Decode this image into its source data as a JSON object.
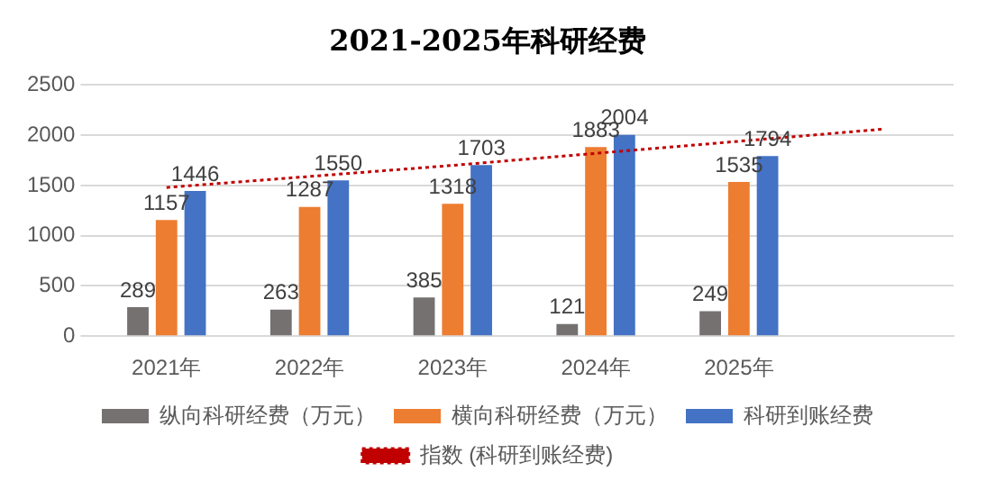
{
  "chart_data": {
    "type": "bar",
    "title": "2021-2025年科研经费",
    "categories": [
      "2021年",
      "2022年",
      "2023年",
      "2024年",
      "2025年",
      null
    ],
    "series": [
      {
        "name": "纵向科研经费（万元）",
        "color": "#767171",
        "values": [
          289,
          263,
          385,
          121,
          249,
          null
        ],
        "value_labels": [
          "289",
          "263",
          "385",
          "121",
          "249",
          null
        ]
      },
      {
        "name": "横向科研经费（万元）",
        "color": "#ed7d31",
        "values": [
          1157,
          1287,
          1318,
          1883,
          1535,
          null
        ],
        "value_labels": [
          "1157",
          "1287",
          "1318",
          "1883",
          "1535",
          null
        ]
      },
      {
        "name": "科研到账经费",
        "color": "#4472c4",
        "values": [
          1446,
          1550,
          1703,
          2004,
          1794,
          null
        ],
        "value_labels": [
          "1446",
          "1550",
          "1703",
          "2004",
          "1794",
          null
        ]
      },
      {
        "name": "指数 (科研到账经费)",
        "type": "line",
        "color": "#c00000",
        "line_style": "dotted",
        "marker": "none",
        "values": [
          1480,
          1590,
          1700,
          1820,
          1940,
          2060
        ]
      }
    ],
    "ylim": [
      0,
      2500
    ],
    "yticks": [
      0,
      500,
      1000,
      1500,
      2000,
      2500
    ],
    "grid": "y",
    "legend": "bottom"
  }
}
